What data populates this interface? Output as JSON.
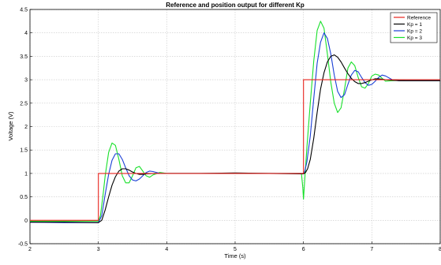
{
  "chart_data": {
    "type": "line",
    "title": "Reference and position output for different Kp",
    "xlabel": "Time (s)",
    "ylabel": "Voltage (V)",
    "xlim": [
      2,
      8
    ],
    "ylim": [
      -0.5,
      4.5
    ],
    "xticks": [
      "2",
      "3",
      "4",
      "5",
      "6",
      "7",
      "8"
    ],
    "yticks": [
      "-0.5",
      "0",
      "0.5",
      "1",
      "1.5",
      "2",
      "2.5",
      "3",
      "3.5",
      "4",
      "4.5"
    ],
    "grid": true,
    "legend_position": "top-right",
    "series": [
      {
        "name": "Reference",
        "color": "#e8231d",
        "x": [
          2,
          3,
          3,
          6,
          6,
          8
        ],
        "y": [
          0,
          0,
          1,
          1,
          3,
          3
        ]
      },
      {
        "name": "Kp = 1",
        "color": "#000000",
        "x": [
          2,
          2.5,
          3,
          3.05,
          3.1,
          3.15,
          3.2,
          3.25,
          3.3,
          3.35,
          3.4,
          3.45,
          3.5,
          3.55,
          3.6,
          3.65,
          3.7,
          3.8,
          3.9,
          4,
          4.5,
          5,
          5.5,
          6,
          6.03,
          6.06,
          6.1,
          6.15,
          6.2,
          6.25,
          6.3,
          6.35,
          6.4,
          6.45,
          6.5,
          6.55,
          6.6,
          6.65,
          6.7,
          6.75,
          6.8,
          6.85,
          6.9,
          6.95,
          7,
          7.05,
          7.1,
          7.2,
          7.3,
          7.4,
          7.5,
          7.7,
          8
        ],
        "y": [
          -0.04,
          -0.04,
          -0.05,
          0.0,
          0.22,
          0.5,
          0.75,
          0.93,
          1.05,
          1.1,
          1.1,
          1.07,
          1.03,
          1.0,
          0.98,
          0.98,
          0.99,
          1.0,
          1.0,
          1.0,
          1.0,
          1.01,
          1.0,
          0.99,
          1.02,
          1.1,
          1.3,
          1.75,
          2.3,
          2.8,
          3.15,
          3.38,
          3.5,
          3.53,
          3.48,
          3.38,
          3.25,
          3.13,
          3.03,
          2.96,
          2.92,
          2.92,
          2.94,
          2.97,
          3.0,
          3.02,
          3.02,
          3.0,
          2.99,
          2.98,
          2.98,
          2.98,
          2.98
        ]
      },
      {
        "name": "Kp = 2",
        "color": "#1a3fd6",
        "x": [
          2,
          2.5,
          3,
          3.05,
          3.1,
          3.15,
          3.2,
          3.25,
          3.3,
          3.35,
          3.4,
          3.45,
          3.5,
          3.55,
          3.6,
          3.65,
          3.7,
          3.75,
          3.8,
          3.9,
          4,
          4.5,
          5,
          5.5,
          6,
          6.02,
          6.05,
          6.1,
          6.15,
          6.2,
          6.25,
          6.3,
          6.35,
          6.4,
          6.45,
          6.5,
          6.55,
          6.6,
          6.65,
          6.7,
          6.75,
          6.8,
          6.85,
          6.9,
          6.95,
          7,
          7.05,
          7.1,
          7.15,
          7.2,
          7.3,
          7.4,
          7.5,
          7.7,
          8
        ],
        "y": [
          -0.04,
          -0.05,
          -0.05,
          0.1,
          0.55,
          0.98,
          1.28,
          1.42,
          1.42,
          1.3,
          1.12,
          0.95,
          0.86,
          0.84,
          0.88,
          0.95,
          1.02,
          1.05,
          1.04,
          1.0,
          1.0,
          1.0,
          1.0,
          1.0,
          1.0,
          1.05,
          1.25,
          1.8,
          2.6,
          3.35,
          3.8,
          4.0,
          3.88,
          3.55,
          3.1,
          2.75,
          2.62,
          2.68,
          2.9,
          3.1,
          3.2,
          3.17,
          3.05,
          2.94,
          2.88,
          2.9,
          2.97,
          3.05,
          3.1,
          3.08,
          3.0,
          2.98,
          2.98,
          2.98,
          2.98
        ]
      },
      {
        "name": "Kp = 3",
        "color": "#18e02a",
        "x": [
          2,
          2.5,
          3,
          3.03,
          3.07,
          3.1,
          3.15,
          3.2,
          3.25,
          3.3,
          3.35,
          3.4,
          3.45,
          3.5,
          3.55,
          3.6,
          3.65,
          3.7,
          3.75,
          3.8,
          3.9,
          4,
          4.5,
          5,
          5.5,
          5.97,
          5.99,
          6.0,
          6.02,
          6.05,
          6.1,
          6.15,
          6.2,
          6.25,
          6.3,
          6.35,
          6.4,
          6.45,
          6.5,
          6.55,
          6.6,
          6.65,
          6.7,
          6.75,
          6.8,
          6.85,
          6.9,
          6.95,
          7,
          7.05,
          7.1,
          7.15,
          7.2,
          7.3,
          7.4,
          7.5,
          7.7,
          8
        ],
        "y": [
          -0.02,
          -0.02,
          -0.02,
          0.1,
          0.55,
          0.95,
          1.45,
          1.65,
          1.6,
          1.3,
          0.95,
          0.8,
          0.8,
          0.95,
          1.12,
          1.15,
          1.05,
          0.95,
          0.92,
          0.97,
          1.02,
          1.0,
          1.0,
          1.0,
          1.0,
          1.0,
          0.7,
          0.45,
          0.9,
          1.55,
          2.5,
          3.4,
          4.05,
          4.25,
          4.1,
          3.55,
          2.95,
          2.5,
          2.3,
          2.4,
          2.8,
          3.25,
          3.38,
          3.3,
          3.05,
          2.85,
          2.82,
          2.92,
          3.08,
          3.12,
          3.1,
          3.03,
          2.97,
          2.98,
          2.99,
          2.98,
          2.98,
          2.98
        ]
      }
    ]
  }
}
